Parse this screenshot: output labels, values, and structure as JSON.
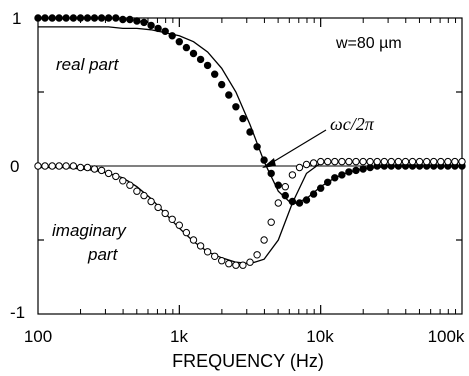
{
  "chart_data": {
    "type": "scatter",
    "xlabel": "FREQUENCY (Hz)",
    "x_scale": "log",
    "xlim": [
      100,
      100000
    ],
    "ylim": [
      -1,
      1
    ],
    "x_ticks": [
      100,
      1000,
      10000,
      100000
    ],
    "x_tick_labels": [
      "100",
      "1k",
      "10k",
      "100k"
    ],
    "y_ticks": [
      -1,
      0,
      1
    ],
    "y_tick_labels": [
      "-1",
      "0",
      "1"
    ],
    "grid": false,
    "annotations": {
      "width": "w=80 µm",
      "real": "real part",
      "imag_line1": "imaginary",
      "imag_line2": "part",
      "omega": "ωc/2π"
    },
    "series": [
      {
        "marker": "filled-circle",
        "x": [
          100,
          112,
          126,
          141,
          158,
          178,
          200,
          224,
          251,
          282,
          316,
          355,
          398,
          447,
          501,
          562,
          631,
          708,
          794,
          891,
          1000,
          1122,
          1259,
          1413,
          1585,
          1778,
          1995,
          2239,
          2512,
          2818,
          3162,
          3548,
          3981,
          4467,
          5012,
          5623,
          6310,
          7079,
          7943,
          8913,
          10000,
          11220,
          12589,
          14125,
          15849,
          17783,
          19953,
          22387,
          25119,
          28184,
          31623,
          35481,
          39811,
          44668,
          50119,
          56234,
          63096,
          70795,
          79433,
          89125,
          100000
        ],
        "y": [
          1.0,
          1.0,
          1.0,
          1.0,
          1.0,
          1.0,
          1.0,
          1.0,
          1.0,
          1.0,
          1.0,
          1.0,
          0.99,
          0.99,
          0.98,
          0.97,
          0.95,
          0.93,
          0.91,
          0.88,
          0.84,
          0.8,
          0.76,
          0.72,
          0.68,
          0.62,
          0.55,
          0.48,
          0.4,
          0.32,
          0.23,
          0.13,
          0.04,
          -0.05,
          -0.13,
          -0.2,
          -0.24,
          -0.25,
          -0.23,
          -0.19,
          -0.15,
          -0.11,
          -0.08,
          -0.06,
          -0.04,
          -0.03,
          -0.02,
          -0.01,
          0.0,
          0.0,
          0.0,
          0.0,
          0.0,
          0.0,
          0.0,
          0.0,
          0.0,
          0.0,
          0.0,
          0.0,
          0.0
        ]
      },
      {
        "marker": "open-circle",
        "x": [
          100,
          112,
          126,
          141,
          158,
          178,
          200,
          224,
          251,
          282,
          316,
          355,
          398,
          447,
          501,
          562,
          631,
          708,
          794,
          891,
          1000,
          1122,
          1259,
          1413,
          1585,
          1778,
          1995,
          2239,
          2512,
          2818,
          3162,
          3548,
          3981,
          4467,
          5012,
          5623,
          6310,
          7079,
          7943,
          8913,
          10000,
          11220,
          12589,
          14125,
          15849,
          17783,
          19953,
          22387,
          25119,
          28184,
          31623,
          35481,
          39811,
          44668,
          50119,
          56234,
          63096,
          70795,
          79433,
          89125,
          100000
        ],
        "y": [
          0.0,
          0.0,
          0.0,
          0.0,
          0.0,
          0.0,
          -0.01,
          -0.01,
          -0.02,
          -0.03,
          -0.05,
          -0.07,
          -0.1,
          -0.13,
          -0.17,
          -0.2,
          -0.24,
          -0.28,
          -0.32,
          -0.36,
          -0.4,
          -0.45,
          -0.5,
          -0.54,
          -0.58,
          -0.61,
          -0.64,
          -0.66,
          -0.67,
          -0.67,
          -0.65,
          -0.6,
          -0.5,
          -0.38,
          -0.25,
          -0.14,
          -0.06,
          -0.01,
          0.01,
          0.02,
          0.03,
          0.03,
          0.03,
          0.03,
          0.03,
          0.03,
          0.03,
          0.03,
          0.03,
          0.03,
          0.03,
          0.03,
          0.03,
          0.03,
          0.03,
          0.03,
          0.03,
          0.03,
          0.03,
          0.03,
          0.03
        ]
      },
      {
        "marker": "line",
        "x": [
          100,
          126,
          158,
          200,
          251,
          316,
          398,
          501,
          631,
          794,
          1000,
          1259,
          1585,
          1995,
          2512,
          3162,
          3981,
          5012,
          6310,
          7943,
          10000,
          12589,
          15849,
          19953,
          25119,
          31623,
          39811,
          50119,
          63096,
          79433,
          100000
        ],
        "y": [
          0.94,
          0.94,
          0.94,
          0.94,
          0.94,
          0.94,
          0.93,
          0.93,
          0.92,
          0.9,
          0.88,
          0.84,
          0.77,
          0.66,
          0.5,
          0.28,
          0.03,
          -0.17,
          -0.26,
          -0.22,
          -0.14,
          -0.08,
          -0.04,
          -0.02,
          -0.01,
          0.0,
          0.0,
          0.0,
          0.0,
          0.0,
          0.0
        ]
      },
      {
        "marker": "line",
        "x": [
          100,
          126,
          158,
          200,
          251,
          316,
          398,
          501,
          631,
          794,
          1000,
          1259,
          1585,
          1995,
          2512,
          3162,
          3981,
          5012,
          6310,
          7943,
          10000,
          12589,
          15849,
          19953,
          25119,
          31623,
          39811,
          50119,
          63096,
          79433,
          100000
        ],
        "y": [
          -0.01,
          -0.01,
          -0.01,
          -0.02,
          -0.03,
          -0.05,
          -0.08,
          -0.14,
          -0.22,
          -0.32,
          -0.42,
          -0.51,
          -0.58,
          -0.62,
          -0.65,
          -0.66,
          -0.63,
          -0.5,
          -0.25,
          -0.05,
          0.02,
          0.03,
          0.03,
          0.03,
          0.03,
          0.03,
          0.03,
          0.03,
          0.03,
          0.03,
          0.03
        ]
      }
    ]
  }
}
